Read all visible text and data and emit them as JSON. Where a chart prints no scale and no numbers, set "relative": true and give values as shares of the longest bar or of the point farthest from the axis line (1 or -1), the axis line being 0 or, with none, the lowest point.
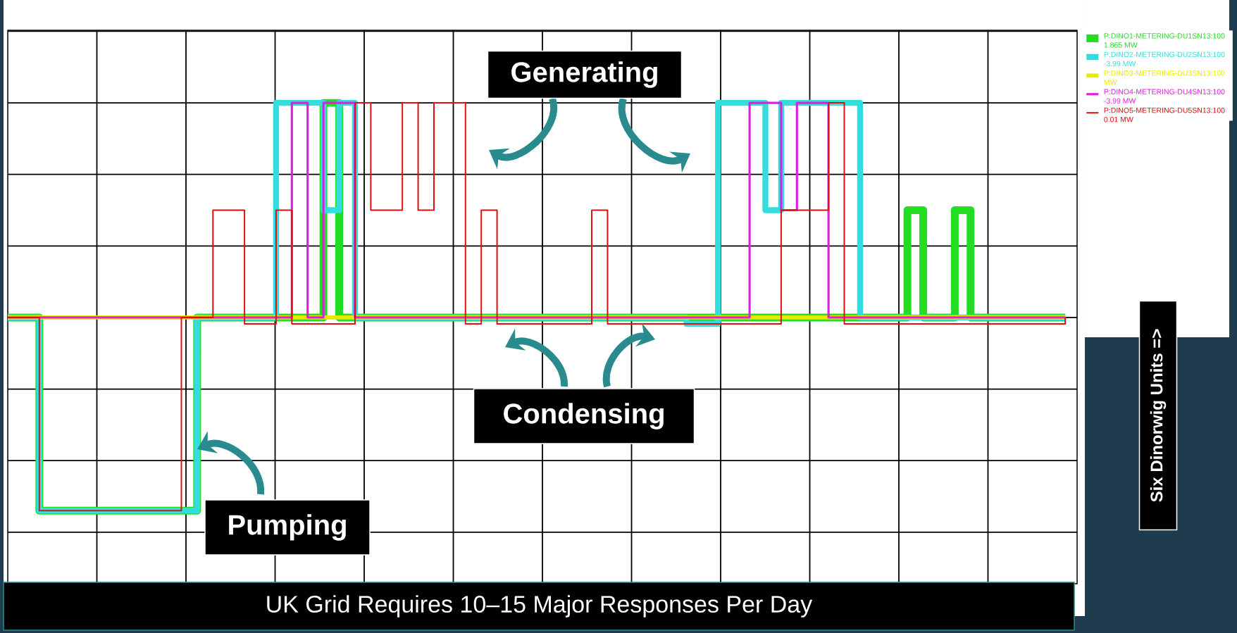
{
  "chart_data": {
    "type": "step",
    "relative": true,
    "grid": true,
    "legend": "right",
    "categories": [
      null,
      null,
      null,
      null,
      null,
      null,
      null,
      null,
      null,
      null,
      null,
      null,
      null,
      null,
      null,
      null,
      null,
      null,
      null,
      null,
      null,
      null,
      null,
      null,
      null,
      null,
      null,
      null,
      null,
      null,
      null,
      null,
      null,
      null,
      null,
      null,
      null,
      null,
      null,
      null,
      null,
      null,
      null,
      null,
      null,
      null,
      null,
      null,
      null,
      null,
      null,
      null,
      null,
      null,
      null,
      null,
      null,
      null,
      null,
      null,
      null,
      null,
      null,
      null,
      null,
      null,
      null,
      null
    ],
    "series": [
      {
        "name": "P:DINO1-METERING-DU1SN13:100 1.865 MW",
        "color": "#22dd22",
        "values": [
          0,
          0,
          -0.9,
          -0.9,
          -0.9,
          -0.9,
          -0.9,
          -0.9,
          -0.9,
          -0.9,
          -0.9,
          -0.9,
          0,
          0,
          0,
          0,
          0,
          0,
          0,
          0,
          1,
          0,
          0,
          0,
          0,
          0,
          0,
          0,
          0,
          0,
          0,
          0,
          0,
          0,
          0,
          0,
          0,
          0,
          0,
          0,
          0,
          0,
          0,
          0,
          0,
          0,
          0,
          0,
          0,
          0,
          0,
          0,
          0,
          0,
          0,
          0,
          0,
          0.5,
          0,
          0,
          0.5,
          0,
          0,
          0,
          0,
          0,
          0,
          0
        ]
      },
      {
        "name": "P:DINO2-METERING-DU2SN13:100 -3.99 MW",
        "color": "#33dddd",
        "values": [
          0,
          0,
          -0.9,
          -0.9,
          -0.9,
          -0.9,
          -0.9,
          -0.9,
          -0.9,
          -0.9,
          -0.9,
          -0.9,
          0,
          0,
          0,
          0,
          0,
          1,
          1,
          1,
          0.5,
          1,
          0,
          0,
          0,
          0,
          0,
          0,
          0,
          0,
          0,
          0,
          0,
          0,
          0,
          0,
          0,
          0,
          0,
          0,
          0,
          0,
          0,
          -0.03,
          -0.03,
          1,
          1,
          1,
          0.5,
          1,
          1,
          1,
          1,
          1,
          0,
          0,
          0,
          0,
          0,
          0,
          0,
          0,
          0,
          0,
          0,
          0,
          0,
          0
        ]
      },
      {
        "name": "P:DINO3-METERING-DU3SN13:100 MW",
        "color": "#e8e800",
        "values": [
          0,
          0,
          0,
          0,
          0,
          0,
          0,
          0,
          0,
          0,
          0,
          0,
          0,
          0,
          0,
          0,
          0,
          0,
          0,
          0,
          0,
          0,
          0,
          0,
          0,
          0,
          0,
          0,
          0,
          0,
          0,
          0,
          0,
          0,
          0,
          0,
          0,
          0,
          0,
          0,
          0,
          0,
          0,
          0,
          0,
          0,
          0,
          0,
          0,
          0,
          0,
          0,
          0,
          0,
          0,
          0,
          0,
          0,
          0,
          0,
          0,
          0,
          0,
          0,
          0,
          0,
          0,
          0
        ]
      },
      {
        "name": "P:DINO4-METERING-DU4SN13:100 -3.99 MW",
        "color": "#e020e0",
        "values": [
          0,
          0,
          0,
          0,
          0,
          0,
          0,
          0,
          0,
          0,
          0,
          0,
          0,
          0,
          0,
          0,
          0,
          0,
          1,
          0,
          1,
          1,
          0,
          0,
          0,
          0,
          0,
          0,
          0,
          0,
          0,
          0,
          0,
          0,
          0,
          0,
          0,
          0,
          0,
          0,
          0,
          0,
          0,
          0,
          0,
          0,
          0,
          1,
          1,
          0.5,
          1,
          1,
          0,
          0,
          0,
          0,
          0,
          0,
          0,
          0,
          0,
          0,
          0,
          0,
          0,
          0,
          0,
          0
        ]
      },
      {
        "name": "P:DINO5-METERING-DU5SN13:100 0.01 MW",
        "color": "#e01010",
        "values": [
          0,
          0,
          -0.9,
          -0.9,
          -0.9,
          -0.9,
          -0.9,
          -0.9,
          -0.9,
          -0.9,
          -0.9,
          0,
          0,
          0.5,
          0.5,
          -0.03,
          -0.03,
          0.5,
          -0.03,
          -0.03,
          -0.03,
          -0.03,
          1,
          0.5,
          0.5,
          1,
          0.5,
          1,
          1,
          -0.03,
          0.5,
          -0.03,
          -0.03,
          -0.03,
          -0.03,
          -0.03,
          -0.03,
          0.5,
          -0.03,
          -0.03,
          -0.03,
          -0.03,
          -0.03,
          -0.03,
          -0.03,
          -0.03,
          -0.03,
          -0.03,
          -0.03,
          0.5,
          0.5,
          0.5,
          1,
          -0.03,
          -0.03,
          -0.03,
          -0.03,
          -0.03,
          -0.03,
          -0.03,
          -0.03,
          -0.03,
          -0.03,
          -0.03,
          -0.03,
          -0.03,
          -0.03,
          0
        ]
      }
    ],
    "annotations": [
      "Generating",
      "Condensing",
      "Pumping",
      "UK Grid Requires 10–15 Major Responses Per Day",
      "Six Dinorwig Units =>"
    ]
  }
}
